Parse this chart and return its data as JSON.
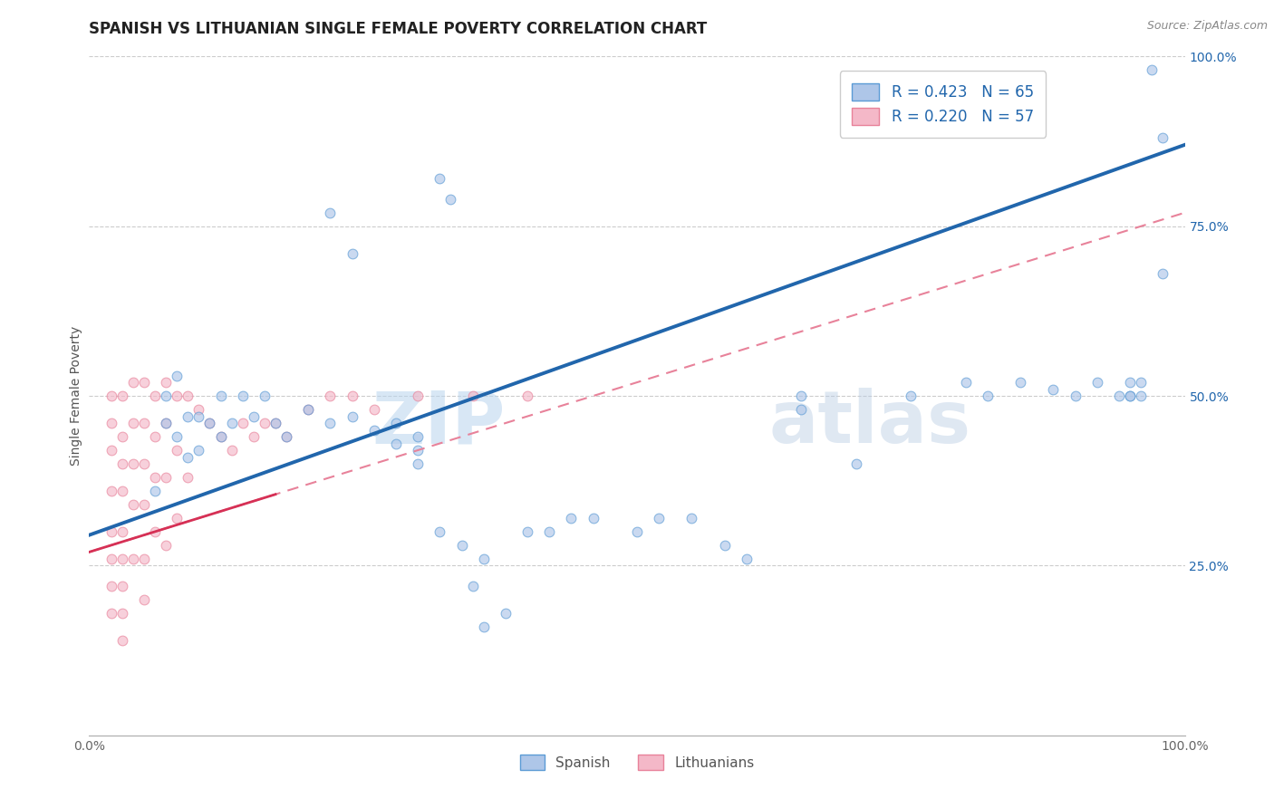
{
  "title": "SPANISH VS LITHUANIAN SINGLE FEMALE POVERTY CORRELATION CHART",
  "source": "Source: ZipAtlas.com",
  "ylabel": "Single Female Poverty",
  "xlim": [
    0,
    1
  ],
  "ylim": [
    0,
    1
  ],
  "watermark_zip": "ZIP",
  "watermark_atlas": "atlas",
  "legend_entries": [
    {
      "label": "R = 0.423   N = 65",
      "color": "#aec6e8"
    },
    {
      "label": "R = 0.220   N = 57",
      "color": "#f4b8c8"
    }
  ],
  "legend_bottom": [
    "Spanish",
    "Lithuanians"
  ],
  "spanish_color": "#aec6e8",
  "lithuanian_color": "#f4b8c8",
  "spanish_edge": "#5b9bd5",
  "lithuanian_edge": "#e8829a",
  "blue_line_color": "#2166ac",
  "pink_line_color": "#e8829a",
  "background_color": "#ffffff",
  "grid_color": "#cccccc",
  "title_fontsize": 12,
  "label_fontsize": 10,
  "tick_fontsize": 10,
  "marker_size": 60,
  "alpha": 0.65,
  "spanish_x": [
    0.32,
    0.33,
    0.22,
    0.24,
    0.06,
    0.07,
    0.07,
    0.08,
    0.08,
    0.09,
    0.09,
    0.1,
    0.1,
    0.11,
    0.12,
    0.12,
    0.13,
    0.14,
    0.15,
    0.16,
    0.17,
    0.18,
    0.2,
    0.22,
    0.24,
    0.26,
    0.28,
    0.28,
    0.3,
    0.3,
    0.3,
    0.32,
    0.34,
    0.35,
    0.36,
    0.36,
    0.38,
    0.4,
    0.42,
    0.44,
    0.46,
    0.5,
    0.52,
    0.55,
    0.58,
    0.6,
    0.65,
    0.65,
    0.7,
    0.75,
    0.8,
    0.82,
    0.85,
    0.88,
    0.9,
    0.92,
    0.95,
    0.95,
    0.97,
    0.98,
    0.98,
    0.96,
    0.96,
    0.95,
    0.94
  ],
  "spanish_y": [
    0.82,
    0.79,
    0.77,
    0.71,
    0.36,
    0.5,
    0.46,
    0.53,
    0.44,
    0.47,
    0.41,
    0.47,
    0.42,
    0.46,
    0.5,
    0.44,
    0.46,
    0.5,
    0.47,
    0.5,
    0.46,
    0.44,
    0.48,
    0.46,
    0.47,
    0.45,
    0.43,
    0.46,
    0.4,
    0.42,
    0.44,
    0.3,
    0.28,
    0.22,
    0.26,
    0.16,
    0.18,
    0.3,
    0.3,
    0.32,
    0.32,
    0.3,
    0.32,
    0.32,
    0.28,
    0.26,
    0.5,
    0.48,
    0.4,
    0.5,
    0.52,
    0.5,
    0.52,
    0.51,
    0.5,
    0.52,
    0.52,
    0.5,
    0.98,
    0.88,
    0.68,
    0.52,
    0.5,
    0.5,
    0.5
  ],
  "lithuanian_x": [
    0.02,
    0.02,
    0.02,
    0.02,
    0.02,
    0.02,
    0.02,
    0.02,
    0.03,
    0.03,
    0.03,
    0.03,
    0.03,
    0.03,
    0.03,
    0.03,
    0.03,
    0.04,
    0.04,
    0.04,
    0.04,
    0.04,
    0.05,
    0.05,
    0.05,
    0.05,
    0.05,
    0.05,
    0.06,
    0.06,
    0.06,
    0.06,
    0.07,
    0.07,
    0.07,
    0.07,
    0.08,
    0.08,
    0.08,
    0.09,
    0.09,
    0.1,
    0.11,
    0.12,
    0.13,
    0.14,
    0.15,
    0.16,
    0.17,
    0.18,
    0.2,
    0.22,
    0.24,
    0.26,
    0.3,
    0.35,
    0.4
  ],
  "lithuanian_y": [
    0.5,
    0.46,
    0.42,
    0.36,
    0.3,
    0.26,
    0.22,
    0.18,
    0.5,
    0.44,
    0.4,
    0.36,
    0.3,
    0.26,
    0.22,
    0.18,
    0.14,
    0.52,
    0.46,
    0.4,
    0.34,
    0.26,
    0.52,
    0.46,
    0.4,
    0.34,
    0.26,
    0.2,
    0.5,
    0.44,
    0.38,
    0.3,
    0.52,
    0.46,
    0.38,
    0.28,
    0.5,
    0.42,
    0.32,
    0.5,
    0.38,
    0.48,
    0.46,
    0.44,
    0.42,
    0.46,
    0.44,
    0.46,
    0.46,
    0.44,
    0.48,
    0.5,
    0.5,
    0.48,
    0.5,
    0.5,
    0.5
  ],
  "blue_line_x0": 0.0,
  "blue_line_y0": 0.295,
  "blue_line_x1": 1.0,
  "blue_line_y1": 0.87,
  "pink_line_x0": 0.0,
  "pink_line_y0": 0.27,
  "pink_line_x1": 1.0,
  "pink_line_y1": 0.77
}
